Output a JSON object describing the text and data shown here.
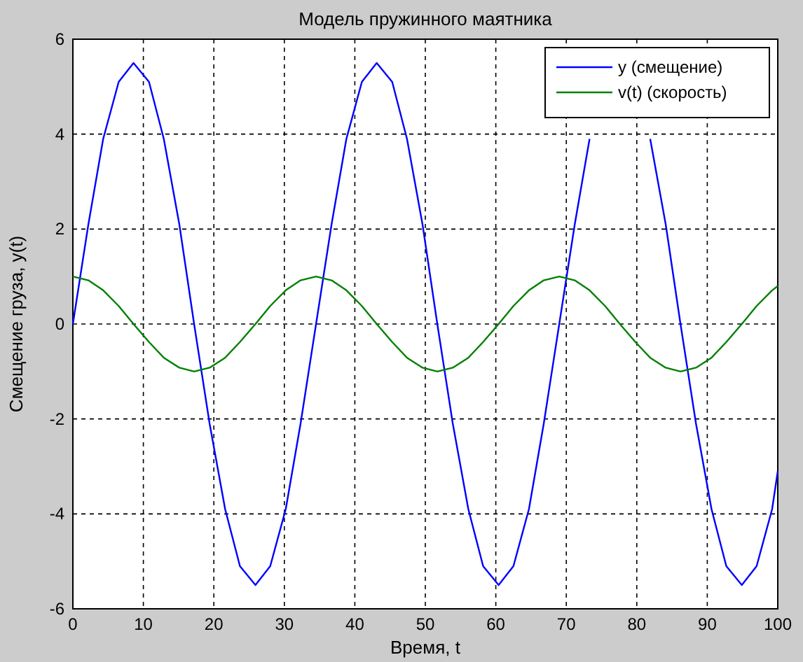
{
  "chart_data": {
    "type": "line",
    "title": "Модель пружинного маятника",
    "xlabel": "Время, t",
    "ylabel": "Смещение груза, y(t)",
    "x": [
      0,
      2.2,
      4.3,
      6.5,
      8.6,
      10.8,
      12.9,
      15.1,
      17.2,
      19.4,
      21.6,
      23.7,
      25.9,
      28.0,
      30.2,
      32.3,
      34.5,
      36.7,
      38.8,
      41.0,
      43.1,
      45.3,
      47.4,
      49.6,
      51.7,
      53.9,
      56.1,
      58.2,
      60.4,
      62.5,
      64.7,
      66.8,
      69.0,
      71.2,
      73.3,
      75.5,
      77.6,
      79.8,
      81.9,
      84.1,
      86.2,
      88.4,
      90.6,
      92.7,
      94.9,
      97.0,
      99.2,
      100
    ],
    "series": [
      {
        "name": "y (смещение)",
        "color": "#0000ff",
        "values": [
          0,
          2.1,
          3.9,
          5.1,
          5.5,
          5.1,
          3.9,
          2.1,
          0,
          -2.1,
          -3.9,
          -5.1,
          -5.5,
          -5.1,
          -3.9,
          -2.1,
          0,
          2.1,
          3.9,
          5.1,
          5.5,
          5.1,
          3.9,
          2.1,
          0,
          -2.1,
          -3.9,
          -5.1,
          -5.5,
          -5.1,
          -3.9,
          -2.1,
          0,
          2.1,
          3.9,
          null,
          null,
          null,
          3.9,
          2.1,
          0,
          -2.1,
          -3.9,
          -5.1,
          -5.5,
          -5.1,
          -3.9,
          -3.1
        ]
      },
      {
        "name": "v(t) (скорость)",
        "color": "#008000",
        "values": [
          1,
          0.92,
          0.71,
          0.38,
          0,
          -0.38,
          -0.71,
          -0.92,
          -1,
          -0.92,
          -0.71,
          -0.38,
          0,
          0.38,
          0.71,
          0.92,
          1,
          0.92,
          0.71,
          0.38,
          0,
          -0.38,
          -0.71,
          -0.92,
          -1,
          -0.92,
          -0.71,
          -0.38,
          0,
          0.38,
          0.71,
          0.92,
          1,
          0.92,
          0.71,
          0.38,
          0,
          -0.38,
          -0.71,
          -0.92,
          -1,
          -0.92,
          -0.71,
          -0.38,
          0,
          0.38,
          0.71,
          0.8
        ]
      }
    ],
    "xlim": [
      0,
      100
    ],
    "xticks": [
      0,
      10,
      20,
      30,
      40,
      50,
      60,
      70,
      80,
      90,
      100
    ],
    "ylim": [
      -6,
      6
    ],
    "yticks": [
      -6,
      -4,
      -2,
      0,
      2,
      4,
      6
    ],
    "grid": true,
    "legend": "top right",
    "line_style": "solid",
    "marker": "none"
  }
}
